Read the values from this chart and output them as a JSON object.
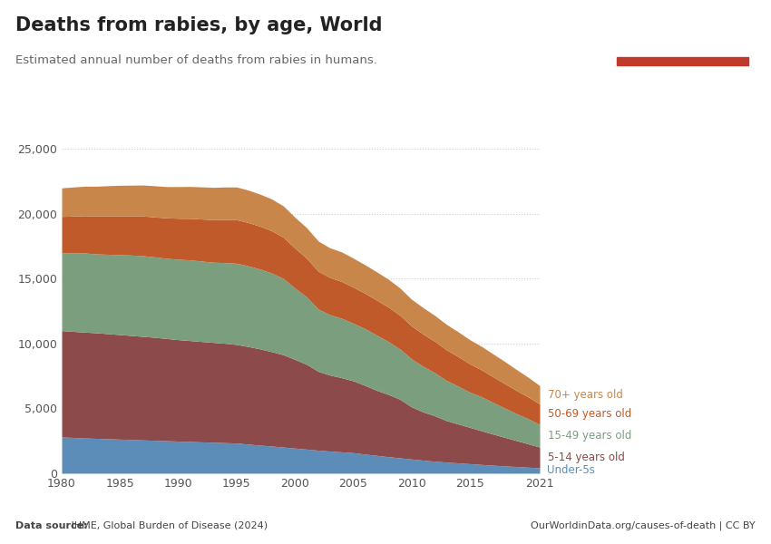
{
  "title": "Deaths from rabies, by age, World",
  "subtitle": "Estimated annual number of deaths from rabies in humans.",
  "source_left_bold": "Data source:",
  "source_left_normal": " IHME, Global Burden of Disease (2024)",
  "source_right": "OurWorldinData.org/causes-of-death | CC BY",
  "years": [
    1980,
    1981,
    1982,
    1983,
    1984,
    1985,
    1986,
    1987,
    1988,
    1989,
    1990,
    1991,
    1992,
    1993,
    1994,
    1995,
    1996,
    1997,
    1998,
    1999,
    2000,
    2001,
    2002,
    2003,
    2004,
    2005,
    2006,
    2007,
    2008,
    2009,
    2010,
    2011,
    2012,
    2013,
    2014,
    2015,
    2016,
    2017,
    2018,
    2019,
    2020,
    2021
  ],
  "under5": [
    2800,
    2760,
    2720,
    2690,
    2660,
    2630,
    2600,
    2570,
    2540,
    2510,
    2480,
    2450,
    2420,
    2390,
    2360,
    2330,
    2250,
    2170,
    2100,
    2020,
    1940,
    1860,
    1780,
    1710,
    1650,
    1590,
    1480,
    1380,
    1280,
    1190,
    1100,
    1010,
    930,
    860,
    800,
    740,
    680,
    620,
    570,
    520,
    470,
    420
  ],
  "age5_14": [
    8200,
    8180,
    8160,
    8140,
    8100,
    8060,
    8020,
    7980,
    7940,
    7880,
    7820,
    7780,
    7740,
    7700,
    7660,
    7600,
    7520,
    7420,
    7280,
    7120,
    6840,
    6540,
    6080,
    5860,
    5720,
    5540,
    5300,
    5020,
    4800,
    4520,
    4020,
    3720,
    3500,
    3200,
    3000,
    2800,
    2600,
    2400,
    2200,
    2000,
    1800,
    1600
  ],
  "age15_49": [
    6000,
    6050,
    6100,
    6080,
    6120,
    6160,
    6200,
    6220,
    6200,
    6180,
    6200,
    6220,
    6200,
    6180,
    6220,
    6260,
    6220,
    6160,
    6060,
    5880,
    5500,
    5200,
    4800,
    4660,
    4580,
    4440,
    4380,
    4260,
    4080,
    3880,
    3700,
    3520,
    3320,
    3100,
    2920,
    2720,
    2620,
    2440,
    2260,
    2080,
    1940,
    1740
  ],
  "age50_69": [
    2800,
    2840,
    2880,
    2920,
    2960,
    3000,
    3020,
    3060,
    3080,
    3120,
    3160,
    3200,
    3240,
    3280,
    3320,
    3360,
    3340,
    3300,
    3260,
    3180,
    3080,
    2980,
    2920,
    2860,
    2840,
    2780,
    2720,
    2700,
    2660,
    2600,
    2540,
    2480,
    2420,
    2360,
    2280,
    2180,
    2080,
    1980,
    1880,
    1780,
    1680,
    1580
  ],
  "age70plus": [
    2200,
    2240,
    2270,
    2300,
    2330,
    2350,
    2370,
    2390,
    2400,
    2410,
    2440,
    2460,
    2480,
    2490,
    2510,
    2520,
    2500,
    2470,
    2450,
    2420,
    2380,
    2360,
    2330,
    2290,
    2280,
    2240,
    2200,
    2180,
    2150,
    2100,
    2060,
    2040,
    2000,
    1960,
    1910,
    1860,
    1810,
    1760,
    1710,
    1620,
    1520,
    1420
  ],
  "colors": {
    "under5": "#5b8db8",
    "age5_14": "#8c4a4a",
    "age15_49": "#7a9e7e",
    "age50_69": "#c05a2a",
    "age70plus": "#c8864a"
  },
  "labels": {
    "under5": "Under-5s",
    "age5_14": "5-14 years old",
    "age15_49": "15-49 years old",
    "age50_69": "50-69 years old",
    "age70plus": "70+ years old"
  },
  "label_colors": {
    "under5": "#5b8db8",
    "age5_14": "#8c4a4a",
    "age15_49": "#7a9e7e",
    "age50_69": "#c05a2a",
    "age70plus": "#c8864a"
  },
  "ylim": [
    0,
    26000
  ],
  "yticks": [
    0,
    5000,
    10000,
    15000,
    20000,
    25000
  ],
  "ytick_labels": [
    "0",
    "5,000",
    "10,000",
    "15,000",
    "20,000",
    "25,000"
  ],
  "xticks": [
    1980,
    1985,
    1990,
    1995,
    2000,
    2005,
    2010,
    2015,
    2021
  ],
  "background_color": "#ffffff",
  "grid_color": "#d0d0d0",
  "logo_bg": "#1a3a5c",
  "logo_red": "#c0392b"
}
